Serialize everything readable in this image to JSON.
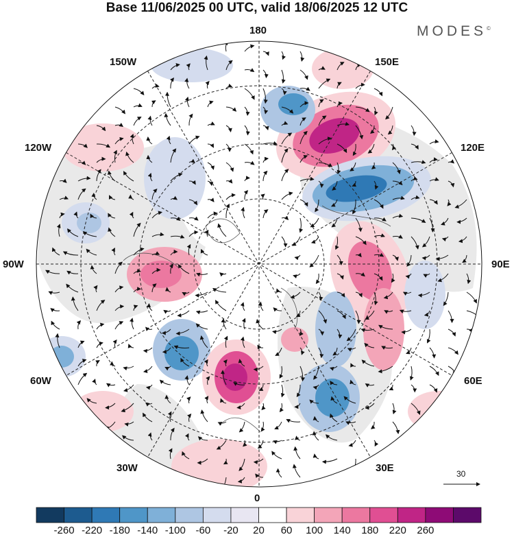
{
  "title": "Base 11/06/2025 00 UTC, valid 18/06/2025 12 UTC",
  "logo": "MODES",
  "logo_mark": "©",
  "longitude_labels": {
    "top": "180",
    "bottom": "0",
    "left": "90W",
    "right": "90E",
    "upper_left": "150W",
    "upper_right": "150E",
    "mid_upper_left": "120W",
    "mid_upper_right": "120E",
    "mid_lower_left": "60W",
    "mid_lower_right": "60E",
    "lower_left": "30W",
    "lower_right": "30E"
  },
  "reference_vector": {
    "label": "30"
  },
  "colorbar": {
    "labels": [
      "-260",
      "-220",
      "-180",
      "-140",
      "-100",
      "-60",
      "-20",
      "20",
      "60",
      "100",
      "140",
      "180",
      "220",
      "260"
    ],
    "colors": [
      "#123a5f",
      "#1d5b8f",
      "#2f79b5",
      "#4f96c8",
      "#7fb0d8",
      "#aec6e3",
      "#d4dcee",
      "#e8e6f2",
      "#ffffff",
      "#f9d3d8",
      "#f3a5b8",
      "#ec78a0",
      "#e04f93",
      "#c02586",
      "#8e0b76",
      "#5c0a6a"
    ]
  },
  "colors": {
    "land_fill": "#e9e9e9",
    "coast": "#555555"
  }
}
